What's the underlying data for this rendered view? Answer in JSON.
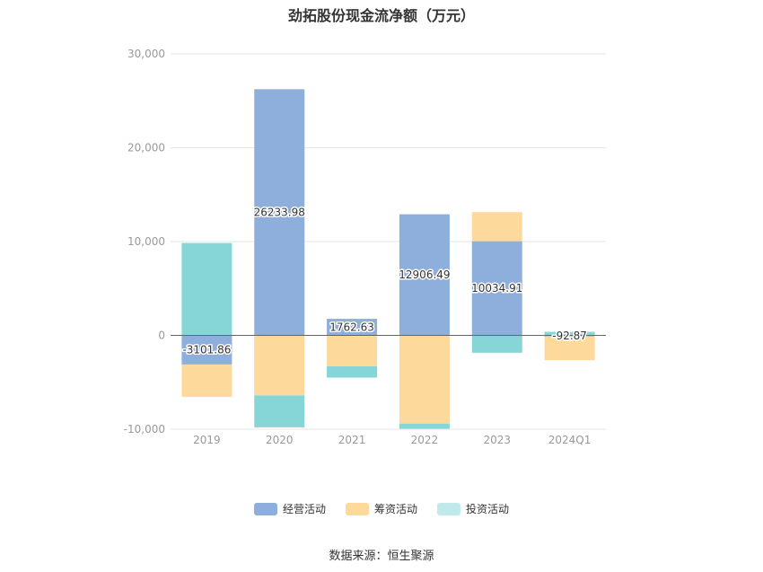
{
  "chart_data": {
    "type": "bar",
    "stacked": true,
    "title": "劲拓股份现金流净额（万元）",
    "categories": [
      "2019",
      "2020",
      "2021",
      "2022",
      "2023",
      "2024Q1"
    ],
    "ylim": [
      -10000,
      30000
    ],
    "yticks": [
      30000,
      20000,
      10000,
      0,
      -10000
    ],
    "ytick_labels": [
      "30,000",
      "20,000",
      "10,000",
      "0",
      "-10,000"
    ],
    "grid": true,
    "legend_position": "bottom",
    "series": [
      {
        "name": "经营活动",
        "color": "#8eaedb",
        "values": [
          -3101.86,
          26233.98,
          1762.63,
          12906.49,
          10034.91,
          -92.87
        ],
        "labels": [
          "-3101.86",
          "26233.98",
          "1762.63",
          "12906.49",
          "10034.91",
          "-92.87"
        ]
      },
      {
        "name": "筹资活动",
        "color": "#fdd99b",
        "values": [
          -3450,
          -6400,
          -3300,
          -9400,
          3100,
          -2550
        ]
      },
      {
        "name": "投资活动",
        "color": "#86d6d8",
        "values": [
          9850,
          -3400,
          -1200,
          -550,
          -1850,
          380
        ]
      }
    ]
  },
  "legend": {
    "items": [
      {
        "label": "经营活动",
        "color": "#8eaedb"
      },
      {
        "label": "筹资活动",
        "color": "#fdd99b"
      },
      {
        "label": "投资活动",
        "color": "#bfe9ea"
      }
    ]
  },
  "source": "数据来源：恒生聚源"
}
